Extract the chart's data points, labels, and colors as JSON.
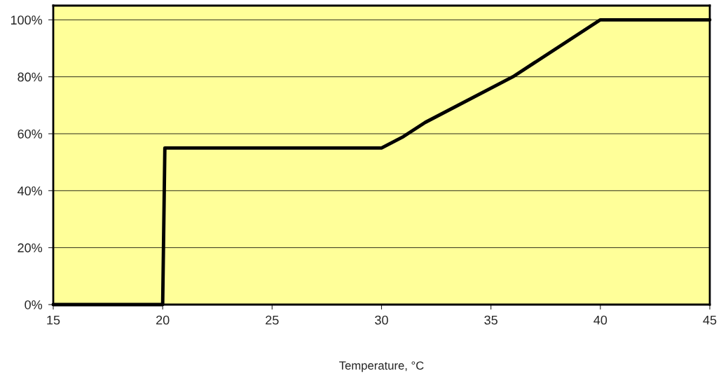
{
  "chart_data": {
    "type": "line",
    "xlabel": "Temperature, °C",
    "series": [
      {
        "color": "#000000",
        "x": [
          15,
          20,
          20.1,
          30,
          31,
          32,
          36,
          40,
          45
        ],
        "values": [
          0,
          0,
          55,
          55,
          59,
          64,
          80,
          100,
          100
        ]
      }
    ],
    "xlim": [
      15,
      45
    ],
    "xticks": [
      15,
      20,
      25,
      30,
      35,
      40,
      45
    ],
    "ylim": [
      0,
      105
    ],
    "yticks": [
      {
        "value": 0,
        "label": "0%"
      },
      {
        "value": 20,
        "label": "20%"
      },
      {
        "value": 40,
        "label": "40%"
      },
      {
        "value": 60,
        "label": "60%"
      },
      {
        "value": 80,
        "label": "80%"
      },
      {
        "value": 100,
        "label": "100%"
      }
    ],
    "grid": "y",
    "line_style": "solid",
    "marker": "none"
  }
}
